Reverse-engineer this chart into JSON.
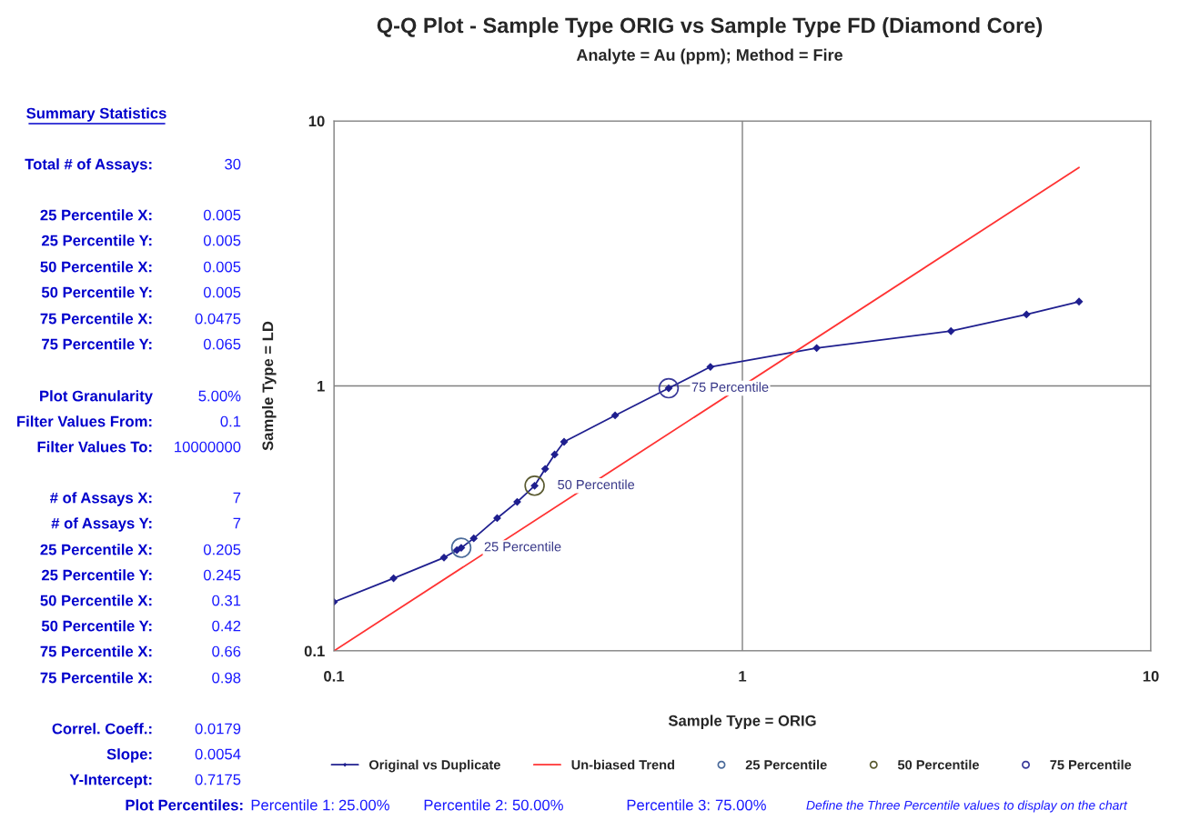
{
  "chart_data": {
    "type": "line",
    "title": "Q-Q Plot - Sample Type ORIG vs Sample Type FD (Diamond Core)",
    "subtitle": "Analyte = Au (ppm); Method = Fire",
    "xlabel": "Sample Type = ORIG",
    "ylabel": "Sample Type = LD",
    "log": "xy",
    "xlim": [
      0.1,
      10
    ],
    "ylim": [
      0.1,
      10
    ],
    "xticks": [
      0.1,
      1,
      10
    ],
    "yticks": [
      0.1,
      1,
      10
    ],
    "grid": true,
    "legend": "bottom",
    "series": [
      {
        "name": "Original vs Duplicate",
        "color": "#1f1f8f",
        "marker": "diamond",
        "x": [
          0.1,
          0.14,
          0.186,
          0.2,
          0.205,
          0.22,
          0.251,
          0.281,
          0.31,
          0.329,
          0.347,
          0.366,
          0.488,
          0.66,
          0.835,
          1.52,
          3.24,
          4.96,
          6.67
        ],
        "values": [
          0.153,
          0.188,
          0.225,
          0.24,
          0.245,
          0.266,
          0.317,
          0.365,
          0.42,
          0.486,
          0.551,
          0.615,
          0.774,
          0.98,
          1.18,
          1.39,
          1.61,
          1.86,
          2.08
        ]
      },
      {
        "name": "Un-biased Trend",
        "color": "#ff3333",
        "marker": "none",
        "x": [
          0.1,
          6.67
        ],
        "values": [
          0.1,
          6.67
        ]
      },
      {
        "name": "25 Percentile",
        "type": "scatter",
        "color": "#4a6a9a",
        "marker": "circle",
        "x": [
          0.205
        ],
        "values": [
          0.245
        ]
      },
      {
        "name": "50 Percentile",
        "type": "scatter",
        "color": "#5a5a30",
        "marker": "circle",
        "x": [
          0.31
        ],
        "values": [
          0.42
        ]
      },
      {
        "name": "75 Percentile",
        "type": "scatter",
        "color": "#3a3a9a",
        "marker": "circle",
        "x": [
          0.66
        ],
        "values": [
          0.98
        ]
      }
    ],
    "annotations": [
      "Summary Statistics",
      "Total # of Assays:",
      "30",
      "25 Percentile X:",
      "0.005",
      "25 Percentile Y:",
      "0.005",
      "50 Percentile X:",
      "0.005",
      "50 Percentile Y:",
      "0.005",
      "75 Percentile X:",
      "0.0475",
      "75 Percentile Y:",
      "0.065",
      "Plot Granularity",
      "5.00%",
      "Filter Values From:",
      "0.1",
      "Filter Values To:",
      "10000000",
      "# of Assays X:",
      "7",
      "# of Assays Y:",
      "7",
      "25 Percentile X:",
      "0.205",
      "25 Percentile Y:",
      "0.245",
      "50 Percentile X:",
      "0.31",
      "50 Percentile Y:",
      "0.42",
      "75 Percentile X:",
      "0.66",
      "75 Percentile X:",
      "0.98",
      "Correl. Coeff.:",
      "0.0179",
      "Slope:",
      "0.0054",
      "Y-Intercept:",
      "0.7175",
      "Plot Percentiles:",
      "Percentile 1:",
      "25.00%",
      "Percentile 2:",
      "50.00%",
      "Percentile 3:",
      "75.00%",
      "Define the Three Percentile values to display on the chart",
      {
        "text": "25 Percentile",
        "x": 0.205,
        "y": 0.245
      },
      {
        "text": "50 Percentile",
        "x": 0.31,
        "y": 0.42
      },
      {
        "text": "75 Percentile",
        "x": 0.66,
        "y": 0.98
      }
    ]
  }
}
